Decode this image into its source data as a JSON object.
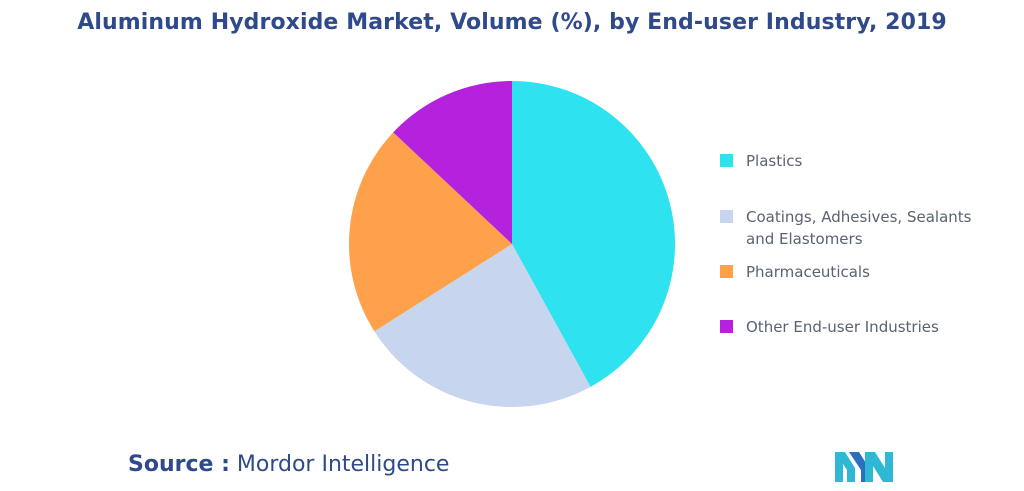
{
  "chart_data": {
    "type": "pie",
    "title": "Aluminum Hydroxide Market, Volume (%), by End-user Industry, 2019",
    "categories": [
      "Plastics",
      "Coatings, Adhesives, Sealants and Elastomers",
      "Pharmaceuticals",
      "Other End-user Industries"
    ],
    "values": [
      42,
      24,
      21,
      13
    ],
    "colors": [
      "#2ee2f0",
      "#c8d5ef",
      "#ffa04a",
      "#b522dd"
    ],
    "legend_position": "right",
    "start_angle": "top",
    "direction": "clockwise"
  },
  "source": {
    "key": "Source :",
    "value": "Mordor Intelligence"
  },
  "logo": {
    "icon": "mordor-intelligence-logo",
    "colors": [
      "#2fb8d4",
      "#2a6fc0"
    ]
  }
}
